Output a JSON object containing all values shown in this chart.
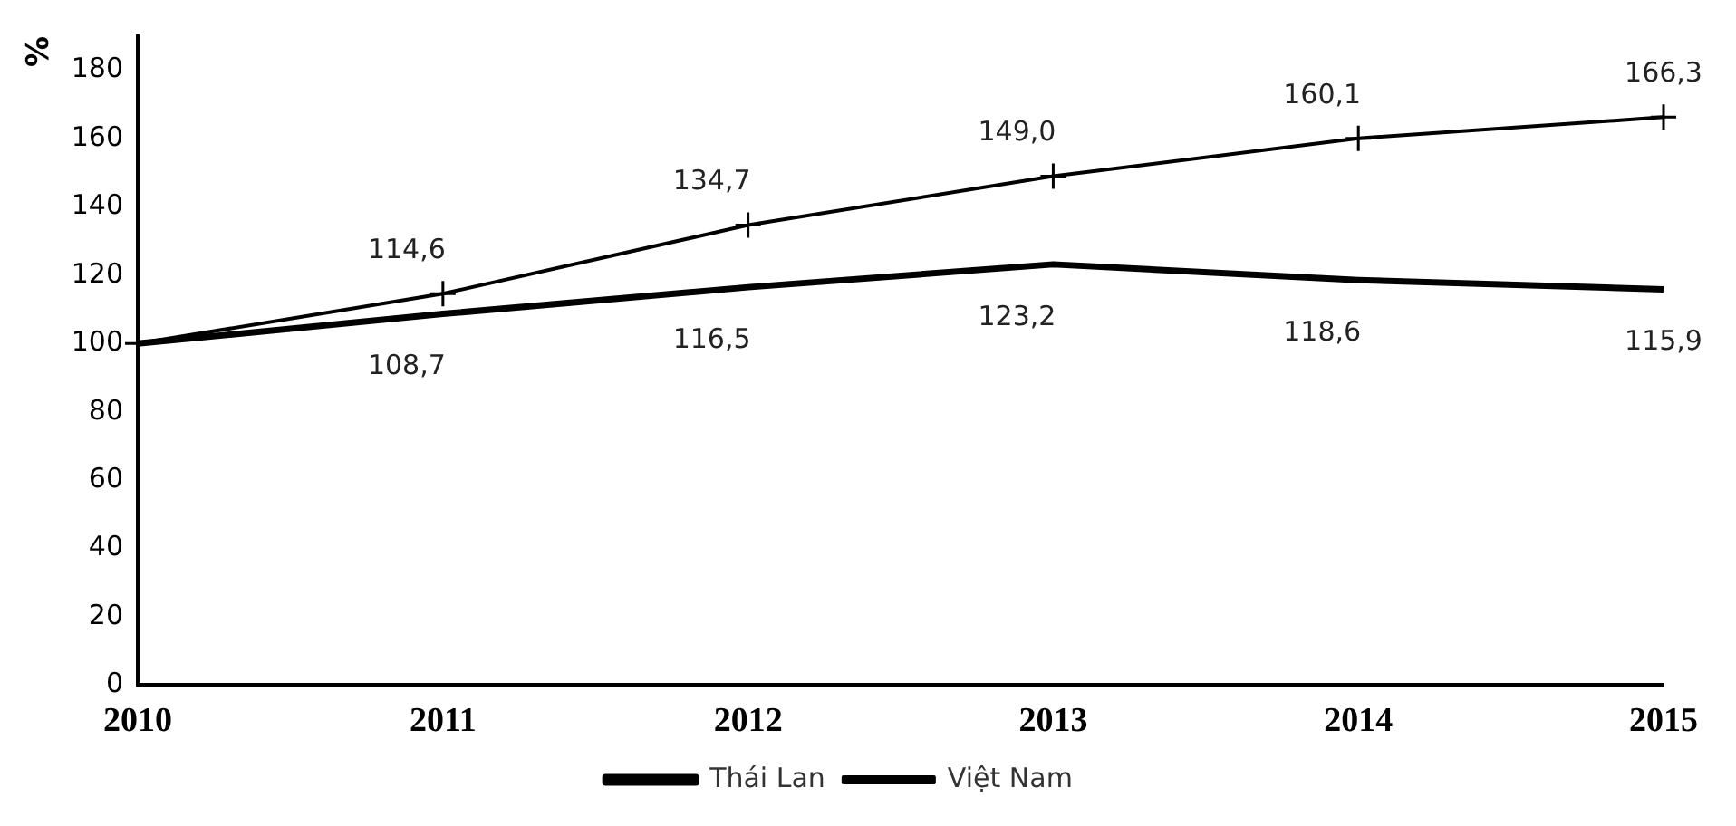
{
  "chart_data": {
    "type": "line",
    "ylabel": "%",
    "categories": [
      "2010",
      "2011",
      "2012",
      "2013",
      "2014",
      "2015"
    ],
    "series": [
      {
        "name": "Thái Lan",
        "color": "#000000",
        "marker": "none",
        "values": [
          100,
          108.7,
          116.5,
          123.2,
          118.6,
          115.9
        ],
        "value_labels": [
          null,
          "108,7",
          "116,5",
          "123,2",
          "118,6",
          "115,9"
        ]
      },
      {
        "name": "Việt Nam",
        "color": "#000000",
        "marker": "cross",
        "values": [
          100,
          114.6,
          134.7,
          149.0,
          160.1,
          166.3
        ],
        "value_labels": [
          null,
          "114,6",
          "134,7",
          "149,0",
          "160,1",
          "166,3"
        ]
      }
    ],
    "ylim": [
      0,
      190
    ],
    "yticks": [
      0,
      20,
      40,
      60,
      80,
      100,
      120,
      140,
      160,
      180
    ],
    "grid": false,
    "legend": "bottom"
  }
}
